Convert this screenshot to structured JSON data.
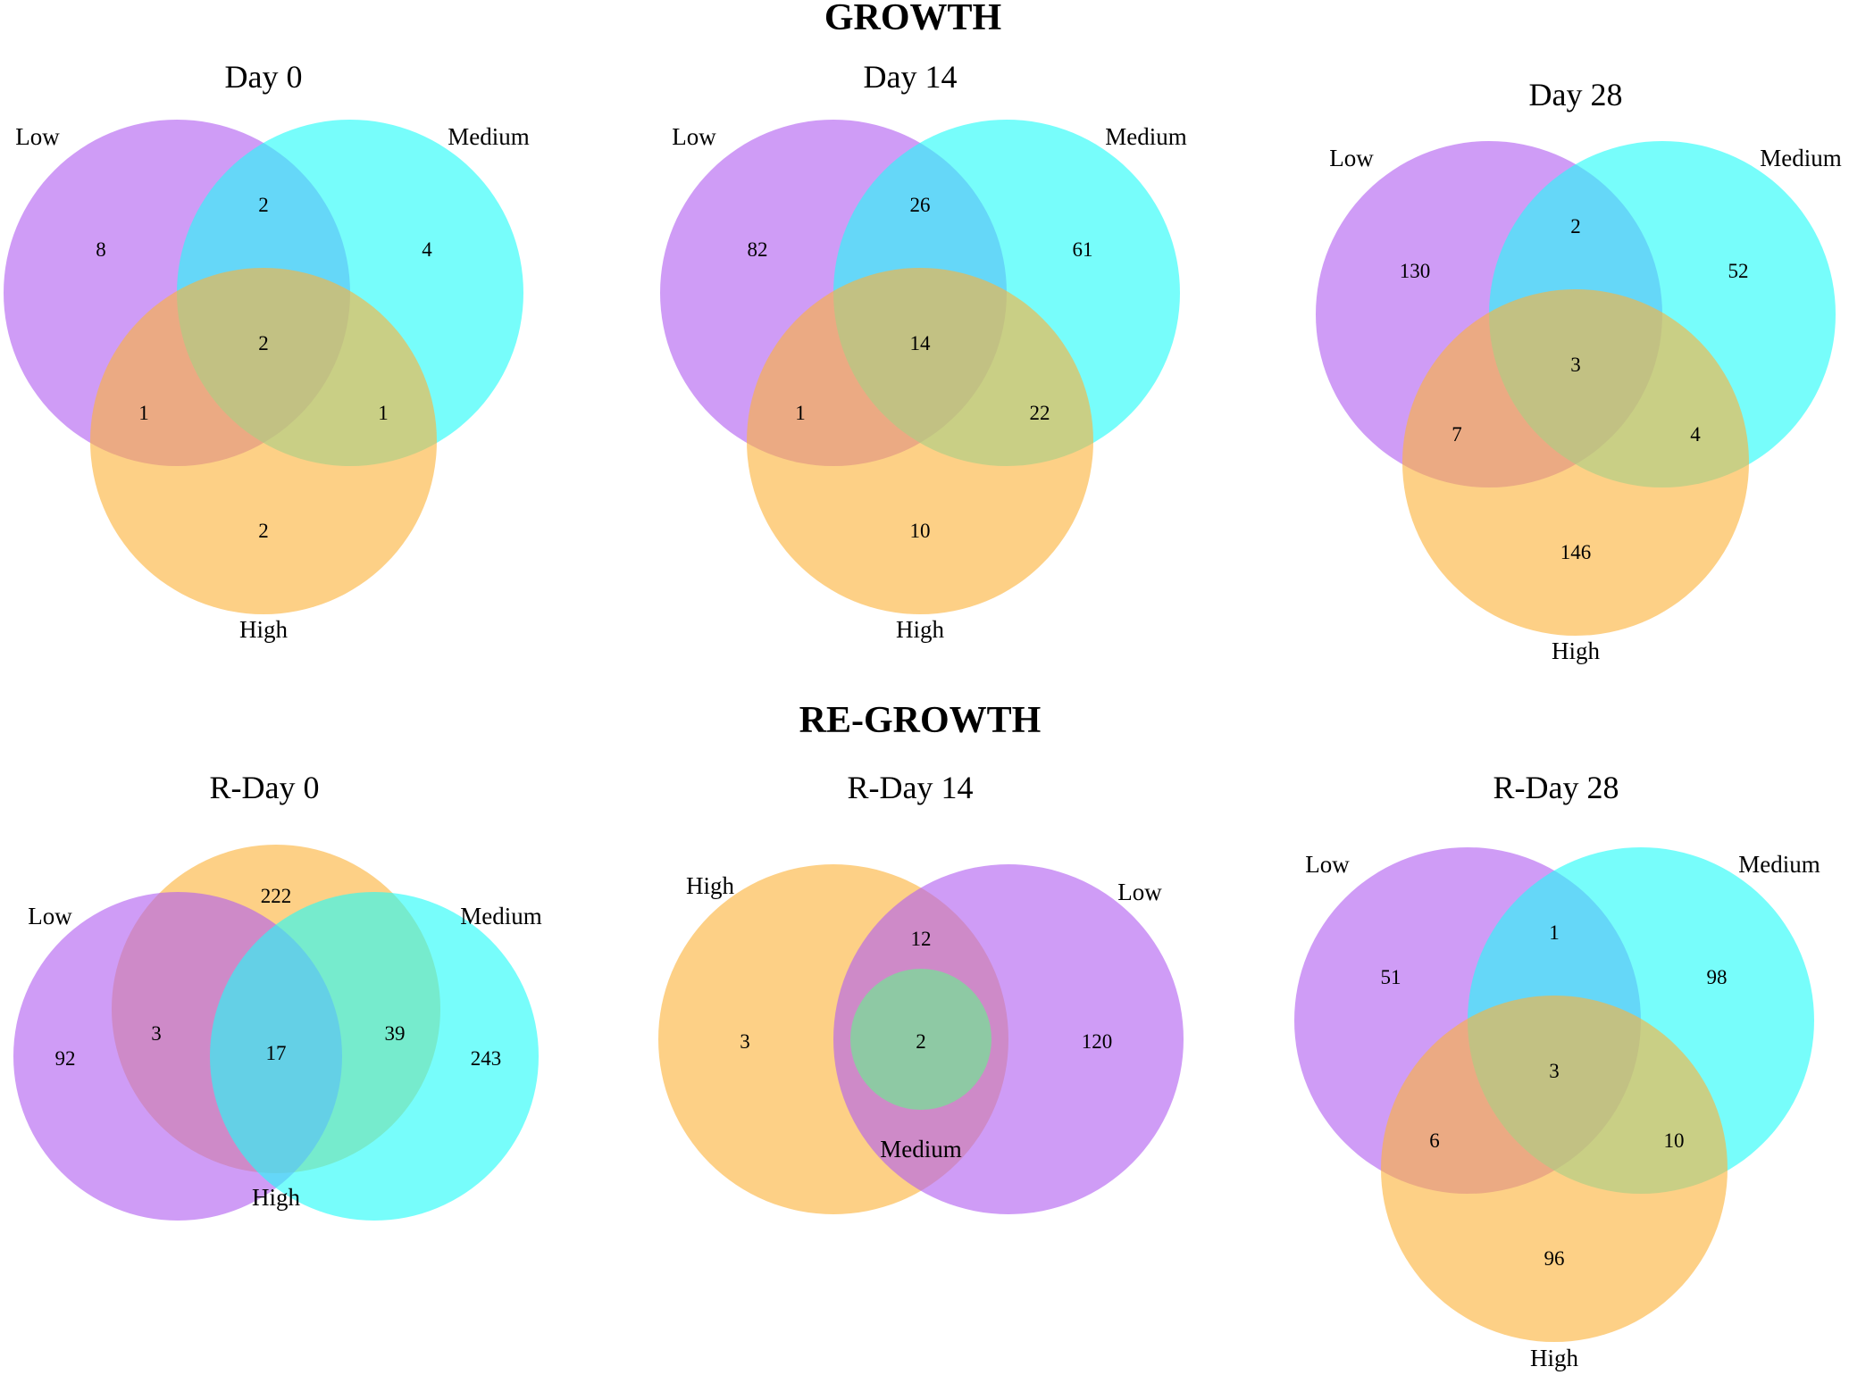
{
  "growth_title": "GROWTH",
  "regrowth_title": "RE-GROWTH",
  "colors": {
    "low": "#b15ff0",
    "medium": "#24fbf8",
    "high": "#fbb33b"
  },
  "panels": [
    {
      "id": "day0",
      "title": "Day 0",
      "sets": [
        {
          "key": "low",
          "label": "Low",
          "color": "#b15ff0"
        },
        {
          "key": "medium",
          "label": "Medium",
          "color": "#24fbf8"
        },
        {
          "key": "high",
          "label": "High",
          "color": "#fbb33b"
        }
      ],
      "regions": [
        {
          "sets": [
            "low"
          ],
          "count": "8"
        },
        {
          "sets": [
            "low",
            "medium"
          ],
          "count": "2"
        },
        {
          "sets": [
            "medium"
          ],
          "count": "4"
        },
        {
          "sets": [
            "low",
            "medium",
            "high"
          ],
          "count": "2"
        },
        {
          "sets": [
            "low",
            "high"
          ],
          "count": "1"
        },
        {
          "sets": [
            "medium",
            "high"
          ],
          "count": "1"
        },
        {
          "sets": [
            "high"
          ],
          "count": "2"
        }
      ]
    },
    {
      "id": "day14",
      "title": "Day 14",
      "sets": [
        {
          "key": "low",
          "label": "Low",
          "color": "#b15ff0"
        },
        {
          "key": "medium",
          "label": "Medium",
          "color": "#24fbf8"
        },
        {
          "key": "high",
          "label": "High",
          "color": "#fbb33b"
        }
      ],
      "regions": [
        {
          "sets": [
            "low"
          ],
          "count": "82"
        },
        {
          "sets": [
            "low",
            "medium"
          ],
          "count": "26"
        },
        {
          "sets": [
            "medium"
          ],
          "count": "61"
        },
        {
          "sets": [
            "low",
            "medium",
            "high"
          ],
          "count": "14"
        },
        {
          "sets": [
            "low",
            "high"
          ],
          "count": "1"
        },
        {
          "sets": [
            "medium",
            "high"
          ],
          "count": "22"
        },
        {
          "sets": [
            "high"
          ],
          "count": "10"
        }
      ]
    },
    {
      "id": "day28",
      "title": "Day 28",
      "sets": [
        {
          "key": "low",
          "label": "Low",
          "color": "#b15ff0"
        },
        {
          "key": "medium",
          "label": "Medium",
          "color": "#24fbf8"
        },
        {
          "key": "high",
          "label": "High",
          "color": "#fbb33b"
        }
      ],
      "regions": [
        {
          "sets": [
            "low"
          ],
          "count": "130"
        },
        {
          "sets": [
            "low",
            "medium"
          ],
          "count": "2"
        },
        {
          "sets": [
            "medium"
          ],
          "count": "52"
        },
        {
          "sets": [
            "low",
            "medium",
            "high"
          ],
          "count": "3"
        },
        {
          "sets": [
            "low",
            "high"
          ],
          "count": "7"
        },
        {
          "sets": [
            "medium",
            "high"
          ],
          "count": "4"
        },
        {
          "sets": [
            "high"
          ],
          "count": "146"
        }
      ]
    },
    {
      "id": "rday0",
      "title": "R-Day 0",
      "sets": [
        {
          "key": "low",
          "label": "Low",
          "color": "#b15ff0"
        },
        {
          "key": "medium",
          "label": "Medium",
          "color": "#24fbf8"
        },
        {
          "key": "high",
          "label": "High",
          "color": "#fbb33b"
        }
      ],
      "regions": [
        {
          "sets": [
            "high"
          ],
          "count": "222"
        },
        {
          "sets": [
            "low"
          ],
          "count": "92"
        },
        {
          "sets": [
            "low",
            "high"
          ],
          "count": "3"
        },
        {
          "sets": [
            "low",
            "medium",
            "high"
          ],
          "count": "17"
        },
        {
          "sets": [
            "medium",
            "high"
          ],
          "count": "39"
        },
        {
          "sets": [
            "medium"
          ],
          "count": "243"
        }
      ]
    },
    {
      "id": "rday14",
      "title": "R-Day 14",
      "sets": [
        {
          "key": "high",
          "label": "High",
          "color": "#fbb33b"
        },
        {
          "key": "low",
          "label": "Low",
          "color": "#b15ff0"
        },
        {
          "key": "medium",
          "label": "Medium",
          "color": "#8ec9a4"
        }
      ],
      "regions": [
        {
          "sets": [
            "high",
            "low"
          ],
          "count": "12"
        },
        {
          "sets": [
            "high"
          ],
          "count": "3"
        },
        {
          "sets": [
            "high",
            "low",
            "medium"
          ],
          "count": "2"
        },
        {
          "sets": [
            "low"
          ],
          "count": "120"
        }
      ]
    },
    {
      "id": "rday28",
      "title": "R-Day 28",
      "sets": [
        {
          "key": "low",
          "label": "Low",
          "color": "#b15ff0"
        },
        {
          "key": "medium",
          "label": "Medium",
          "color": "#24fbf8"
        },
        {
          "key": "high",
          "label": "High",
          "color": "#fbb33b"
        }
      ],
      "regions": [
        {
          "sets": [
            "low"
          ],
          "count": "51"
        },
        {
          "sets": [
            "low",
            "medium"
          ],
          "count": "1"
        },
        {
          "sets": [
            "medium"
          ],
          "count": "98"
        },
        {
          "sets": [
            "low",
            "medium",
            "high"
          ],
          "count": "3"
        },
        {
          "sets": [
            "low",
            "high"
          ],
          "count": "6"
        },
        {
          "sets": [
            "medium",
            "high"
          ],
          "count": "10"
        },
        {
          "sets": [
            "high"
          ],
          "count": "96"
        }
      ]
    }
  ]
}
